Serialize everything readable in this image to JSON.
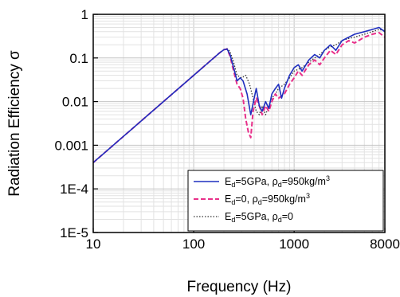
{
  "chart_data": {
    "type": "line",
    "title": "",
    "xlabel": "Frequency (Hz)",
    "ylabel": "Radiation Efficiency σ",
    "x_scale": "log",
    "y_scale": "log",
    "xlim": [
      10,
      8000
    ],
    "ylim": [
      1e-05,
      1
    ],
    "grid": true,
    "legend_position": "bottom-right",
    "x_ticks": [
      {
        "value": 10,
        "label": "10"
      },
      {
        "value": 100,
        "label": "100"
      },
      {
        "value": 1000,
        "label": "1000"
      },
      {
        "value": 8000,
        "label": "8000"
      }
    ],
    "y_ticks": [
      {
        "value": 1,
        "label": "1"
      },
      {
        "value": 0.1,
        "label": "0.1"
      },
      {
        "value": 0.01,
        "label": "0.01"
      },
      {
        "value": 0.001,
        "label": "0.001"
      },
      {
        "value": 0.0001,
        "label": "1E-4"
      },
      {
        "value": 1e-05,
        "label": "1E-5"
      }
    ],
    "series": [
      {
        "name": "Ed=5GPa, ρd=950kg/m3",
        "legend": {
          "E_sub": "d",
          "E_val": "=5GPa, ",
          "rho_sub": "d",
          "rho_val": "=950kg/m",
          "sup": "3"
        },
        "color": "#1f2fbf",
        "dash": "solid",
        "x": [
          10,
          20,
          50,
          100,
          150,
          180,
          200,
          215,
          230,
          250,
          270,
          290,
          310,
          340,
          370,
          400,
          420,
          450,
          480,
          520,
          560,
          600,
          650,
          700,
          750,
          800,
          900,
          1000,
          1100,
          1200,
          1400,
          1600,
          1800,
          2000,
          2300,
          2600,
          3000,
          3500,
          4000,
          5000,
          6000,
          7000,
          8000
        ],
        "y": [
          0.0004,
          0.0016,
          0.01,
          0.04,
          0.09,
          0.13,
          0.155,
          0.16,
          0.12,
          0.06,
          0.03,
          0.035,
          0.03,
          0.015,
          0.005,
          0.012,
          0.02,
          0.008,
          0.006,
          0.01,
          0.007,
          0.015,
          0.02,
          0.025,
          0.012,
          0.02,
          0.04,
          0.06,
          0.07,
          0.05,
          0.09,
          0.12,
          0.1,
          0.15,
          0.2,
          0.15,
          0.25,
          0.3,
          0.35,
          0.4,
          0.45,
          0.5,
          0.4
        ]
      },
      {
        "name": "Ed=0, ρd=950kg/m3",
        "legend": {
          "E_sub": "d",
          "E_val": "=0, ",
          "rho_sub": "d",
          "rho_val": "=950kg/m",
          "sup": "3"
        },
        "color": "#e8308a",
        "dash": "dashed",
        "x": [
          10,
          20,
          50,
          100,
          150,
          180,
          200,
          215,
          230,
          250,
          270,
          290,
          310,
          330,
          350,
          370,
          390,
          420,
          450,
          480,
          520,
          560,
          600,
          650,
          700,
          800,
          900,
          1000,
          1100,
          1200,
          1400,
          1600,
          1800,
          2000,
          2300,
          2600,
          3000,
          3500,
          4000,
          5000,
          6000,
          7000,
          8000
        ],
        "y": [
          0.0004,
          0.0016,
          0.01,
          0.04,
          0.09,
          0.13,
          0.155,
          0.16,
          0.11,
          0.05,
          0.025,
          0.02,
          0.012,
          0.004,
          0.002,
          0.0015,
          0.006,
          0.012,
          0.008,
          0.005,
          0.008,
          0.006,
          0.01,
          0.015,
          0.012,
          0.015,
          0.025,
          0.035,
          0.05,
          0.04,
          0.07,
          0.09,
          0.07,
          0.1,
          0.15,
          0.12,
          0.2,
          0.25,
          0.22,
          0.3,
          0.35,
          0.38,
          0.3
        ]
      },
      {
        "name": "Ed=5GPa, ρd=0",
        "legend": {
          "E_sub": "d",
          "E_val": "=5GPa, ",
          "rho_sub": "d",
          "rho_val": "=0",
          "sup": ""
        },
        "color": "#333333",
        "dash": "dotted",
        "x": [
          10,
          20,
          50,
          100,
          150,
          180,
          200,
          215,
          230,
          250,
          270,
          300,
          330,
          360,
          390,
          420,
          450,
          480,
          520,
          560,
          600,
          650,
          700,
          800,
          900,
          1000,
          1200,
          1400,
          1600,
          1800,
          2000,
          2300,
          2600,
          3000,
          3500,
          4000,
          5000,
          6000,
          7000,
          8000
        ],
        "y": [
          0.0004,
          0.0016,
          0.01,
          0.04,
          0.09,
          0.13,
          0.155,
          0.165,
          0.14,
          0.08,
          0.04,
          0.035,
          0.04,
          0.025,
          0.012,
          0.006,
          0.005,
          0.008,
          0.005,
          0.008,
          0.012,
          0.015,
          0.02,
          0.025,
          0.035,
          0.05,
          0.06,
          0.08,
          0.1,
          0.12,
          0.15,
          0.18,
          0.2,
          0.25,
          0.28,
          0.3,
          0.35,
          0.4,
          0.45,
          0.42
        ]
      }
    ]
  }
}
